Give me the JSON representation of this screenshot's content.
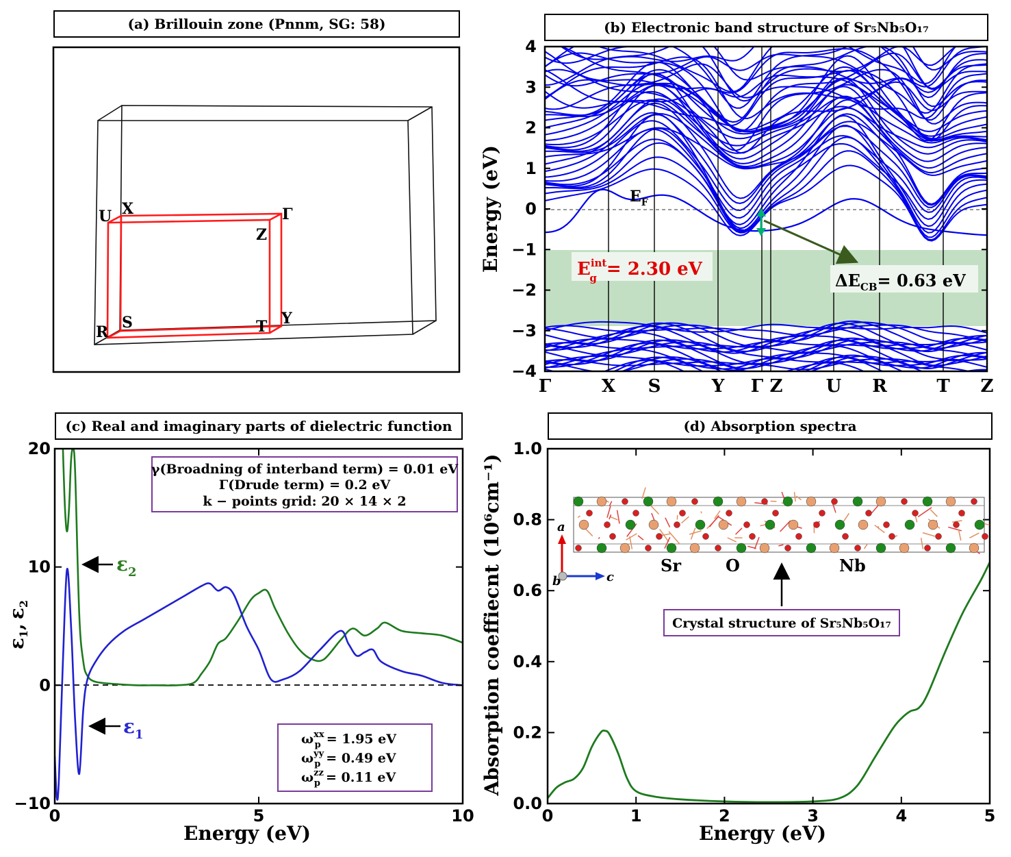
{
  "panels": {
    "a": {
      "title": "(a) Brillouin zone (Pnnm, SG: 58)",
      "points": {
        "U": "U",
        "X": "X",
        "Gamma": "Γ",
        "Z": "Z",
        "R": "R",
        "S": "S",
        "T": "T",
        "Y": "Y"
      }
    },
    "b": {
      "title": "(b) Electronic band structure of Sr₅Nb₅O₁₇",
      "ylabel": "Energy (eV)",
      "ef_label": "E",
      "ef_sub": "F",
      "gap_label_main": "E",
      "gap_sup": "int",
      "gap_sub": "g",
      "gap_value": "= 2.30 eV",
      "dcb_label": "ΔE",
      "dcb_sub": "CB",
      "dcb_value": "= 0.63 eV",
      "kpath": [
        "Γ",
        "X",
        "S",
        "Y",
        "Γ",
        "Z",
        "U",
        "R",
        "T",
        "Z"
      ],
      "yticks": [
        "4",
        "3",
        "2",
        "1",
        "0",
        "−1",
        "−2",
        "−3",
        "−4"
      ]
    },
    "c": {
      "title": "(c) Real and imaginary parts of dielectric function",
      "xlabel": "Energy (eV)",
      "ylabel_1": "ε",
      "ylabel_sub1": "1",
      "ylabel_sep": ",",
      "ylabel_2": "ε",
      "ylabel_sub2": "2",
      "eps2": "ε",
      "eps2_sub": "2",
      "eps1": "ε",
      "eps1_sub": "1",
      "info1": "γ(Broadning of interband term) = 0.01 eV",
      "info2": "Γ(Drude term) = 0.2 eV",
      "info3": "k − points grid:  20 × 14 × 2",
      "wp": [
        {
          "sup": "xx",
          "value": "= 1.95 eV"
        },
        {
          "sup": "yy",
          "value": "= 0.49 eV"
        },
        {
          "sup": "zz",
          "value": "= 0.11 eV"
        }
      ],
      "wp_sym": "ω",
      "wp_sub": "p",
      "xticks": [
        "0",
        "5",
        "10"
      ],
      "yticks": [
        "20",
        "10",
        "0",
        "−10"
      ]
    },
    "d": {
      "title": "(d) Absorption spectra",
      "xlabel": "Energy (eV)",
      "ylabel": "Absorption coeffiecnt (10⁶cm⁻¹)",
      "crystal_label": "Crystal structure of Sr₅Nb₅O₁₇",
      "atoms": {
        "sr": "Sr",
        "o": "O",
        "nb": "Nb"
      },
      "axes": {
        "a": "a",
        "b": "b",
        "c": "c"
      },
      "xticks": [
        "0",
        "1",
        "2",
        "3",
        "4",
        "5"
      ],
      "yticks": [
        "1.0",
        "0.8",
        "0.6",
        "0.4",
        "0.2",
        "0.0"
      ]
    }
  },
  "chart_data": [
    {
      "type": "line",
      "panel": "b",
      "title": "(b) Electronic band structure of Sr5Nb5O17",
      "ylabel": "Energy (eV)",
      "ylim": [
        -4,
        4
      ],
      "k_labels": [
        "Γ",
        "X",
        "S",
        "Y",
        "Γ",
        "Z",
        "U",
        "R",
        "T",
        "Z"
      ],
      "fermi_level": 0,
      "intrinsic_gap_eV": 2.3,
      "delta_ECB_eV": 0.63,
      "gap_region": [
        -2.9,
        -0.63
      ],
      "color": "#0000ee"
    },
    {
      "type": "line",
      "panel": "c",
      "title": "(c) Real and imaginary parts of dielectric function",
      "xlabel": "Energy (eV)",
      "ylabel": "ε1, ε2",
      "xlim": [
        0,
        10
      ],
      "ylim": [
        -10,
        20
      ],
      "series": [
        {
          "name": "ε1",
          "color": "#2020d0",
          "x": [
            0,
            0.05,
            0.1,
            0.2,
            0.3,
            0.4,
            0.5,
            0.6,
            0.7,
            0.8,
            1.0,
            1.3,
            1.7,
            2.2,
            2.7,
            3.2,
            3.6,
            3.8,
            4.0,
            4.2,
            4.4,
            4.7,
            5.0,
            5.3,
            5.6,
            6.0,
            6.5,
            7.0,
            7.2,
            7.4,
            7.6,
            7.8,
            8.0,
            8.5,
            9.0,
            9.5,
            10
          ],
          "values": [
            -6,
            -9.5,
            -8,
            2,
            9.8,
            5,
            -3,
            -7.5,
            -2,
            0.5,
            2,
            3.4,
            4.6,
            5.6,
            6.6,
            7.6,
            8.4,
            8.6,
            8.0,
            8.3,
            7.6,
            5.0,
            3.0,
            0.5,
            0.5,
            1.2,
            3.0,
            4.6,
            3.5,
            2.5,
            2.8,
            3.0,
            2.0,
            1.2,
            0.8,
            0.2,
            0
          ]
        },
        {
          "name": "ε2",
          "color": "#1e7a1e",
          "x": [
            0.2,
            0.25,
            0.3,
            0.35,
            0.4,
            0.45,
            0.5,
            0.6,
            0.7,
            0.8,
            1.0,
            1.5,
            2.0,
            2.5,
            3.0,
            3.4,
            3.6,
            3.8,
            4.0,
            4.2,
            4.5,
            4.8,
            5.0,
            5.2,
            5.4,
            5.7,
            6.0,
            6.3,
            6.6,
            7.0,
            7.3,
            7.6,
            7.9,
            8.1,
            8.5,
            9.0,
            9.5,
            10
          ],
          "values": [
            20,
            15,
            13,
            15,
            19,
            20,
            18,
            6,
            2,
            0.8,
            0.3,
            0.1,
            0,
            0,
            0,
            0.2,
            1,
            2,
            3.5,
            4,
            5.5,
            7.2,
            7.8,
            8.0,
            6.5,
            4.5,
            3.0,
            2.2,
            2.2,
            3.8,
            4.8,
            4.2,
            4.8,
            5.3,
            4.6,
            4.4,
            4.2,
            3.6
          ]
        }
      ],
      "annotations": {
        "gamma_eV": 0.01,
        "Gamma_drude_eV": 0.2,
        "kgrid": "20 × 14 × 2",
        "wp_xx": 1.95,
        "wp_yy": 0.49,
        "wp_zz": 0.11
      }
    },
    {
      "type": "line",
      "panel": "d",
      "title": "(d) Absorption spectra",
      "xlabel": "Energy (eV)",
      "ylabel": "Absorption coeffiecnt (10⁶cm⁻¹)",
      "xlim": [
        0,
        5
      ],
      "ylim": [
        0,
        1.0
      ],
      "series": [
        {
          "name": "",
          "color": "#1e7a1e",
          "x": [
            0,
            0.1,
            0.2,
            0.3,
            0.4,
            0.5,
            0.6,
            0.65,
            0.7,
            0.8,
            0.9,
            1.0,
            1.2,
            1.5,
            2.0,
            2.5,
            3.0,
            3.3,
            3.5,
            3.7,
            3.9,
            4.0,
            4.1,
            4.2,
            4.3,
            4.5,
            4.7,
            4.9,
            5.0
          ],
          "values": [
            0.015,
            0.045,
            0.06,
            0.07,
            0.1,
            0.16,
            0.2,
            0.205,
            0.195,
            0.14,
            0.07,
            0.035,
            0.02,
            0.012,
            0.006,
            0.004,
            0.006,
            0.015,
            0.05,
            0.13,
            0.21,
            0.24,
            0.26,
            0.27,
            0.31,
            0.43,
            0.54,
            0.63,
            0.68
          ]
        }
      ]
    }
  ]
}
